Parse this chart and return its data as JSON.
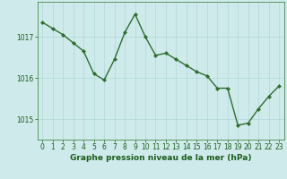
{
  "x": [
    0,
    1,
    2,
    3,
    4,
    5,
    6,
    7,
    8,
    9,
    10,
    11,
    12,
    13,
    14,
    15,
    16,
    17,
    18,
    19,
    20,
    21,
    22,
    23
  ],
  "y": [
    1017.35,
    1017.2,
    1017.05,
    1016.85,
    1016.65,
    1016.1,
    1015.95,
    1016.45,
    1017.1,
    1017.55,
    1017.0,
    1016.55,
    1016.6,
    1016.45,
    1016.3,
    1016.15,
    1016.05,
    1015.75,
    1015.75,
    1014.85,
    1014.9,
    1015.25,
    1015.55,
    1015.8
  ],
  "line_color": "#2d6e2d",
  "marker": "D",
  "markersize": 2.2,
  "linewidth": 1.0,
  "bg_color": "#ceeaea",
  "grid_color": "#b0d8d8",
  "xlabel": "Graphe pression niveau de la mer (hPa)",
  "xlabel_fontsize": 6.5,
  "tick_fontsize": 5.5,
  "ylim": [
    1014.5,
    1017.85
  ],
  "yticks": [
    1015,
    1016,
    1017
  ],
  "xticks": [
    0,
    1,
    2,
    3,
    4,
    5,
    6,
    7,
    8,
    9,
    10,
    11,
    12,
    13,
    14,
    15,
    16,
    17,
    18,
    19,
    20,
    21,
    22,
    23
  ]
}
